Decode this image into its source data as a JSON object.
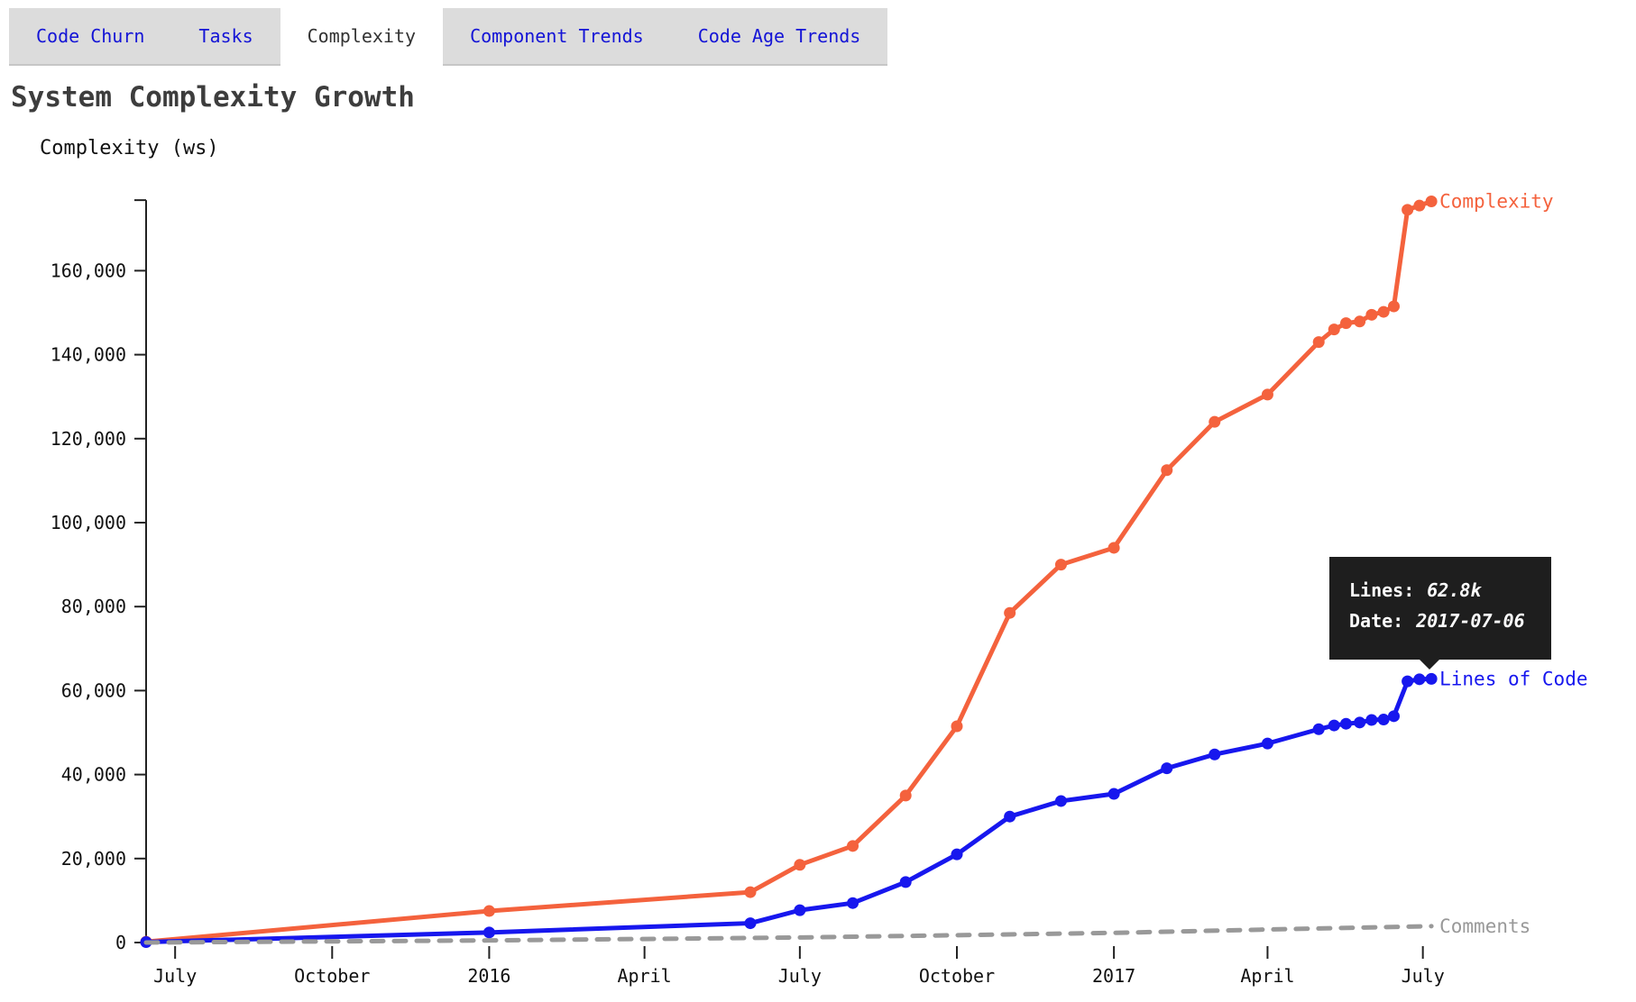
{
  "tabs": {
    "items": [
      {
        "label": "Code Churn",
        "active": false
      },
      {
        "label": "Tasks",
        "active": false
      },
      {
        "label": "Complexity",
        "active": true
      },
      {
        "label": "Component Trends",
        "active": false
      },
      {
        "label": "Code Age Trends",
        "active": false
      }
    ]
  },
  "header": {
    "title": "System Complexity Growth"
  },
  "tooltip": {
    "rows": [
      {
        "label": "Lines:",
        "value": "62.8k"
      },
      {
        "label": "Date:",
        "value": "2017-07-06"
      }
    ]
  },
  "chart_data": {
    "type": "line",
    "title": "System Complexity Growth",
    "legend_position": "line-end-labels",
    "grid": false,
    "y_axis": {
      "label": "Complexity (ws)",
      "ticks": [
        0,
        20000,
        40000,
        60000,
        80000,
        100000,
        120000,
        140000,
        160000
      ],
      "tick_labels": [
        "0",
        "20,000",
        "40,000",
        "60,000",
        "80,000",
        "100,000",
        "120,000",
        "140,000",
        "160,000"
      ],
      "max": 176800
    },
    "x_axis": {
      "domain": [
        "2015-06-14",
        "2017-07-20"
      ],
      "ticks": [
        {
          "date": "2015-07-01",
          "label": "July"
        },
        {
          "date": "2015-10-01",
          "label": "October"
        },
        {
          "date": "2016-01-01",
          "label": "2016"
        },
        {
          "date": "2016-04-01",
          "label": "April"
        },
        {
          "date": "2016-07-01",
          "label": "July"
        },
        {
          "date": "2016-10-01",
          "label": "October"
        },
        {
          "date": "2017-01-01",
          "label": "2017"
        },
        {
          "date": "2017-04-01",
          "label": "April"
        },
        {
          "date": "2017-07-01",
          "label": "July"
        }
      ]
    },
    "series": [
      {
        "name": "Complexity",
        "color": "#f4623d",
        "style": "solid",
        "markers": true,
        "points": [
          {
            "date": "2015-06-14",
            "value": 200
          },
          {
            "date": "2016-01-01",
            "value": 7500
          },
          {
            "date": "2016-06-02",
            "value": 12000
          },
          {
            "date": "2016-07-01",
            "value": 18500
          },
          {
            "date": "2016-08-01",
            "value": 23000
          },
          {
            "date": "2016-09-01",
            "value": 35000
          },
          {
            "date": "2016-10-01",
            "value": 51500
          },
          {
            "date": "2016-11-01",
            "value": 78500
          },
          {
            "date": "2016-12-01",
            "value": 90000
          },
          {
            "date": "2017-01-01",
            "value": 94000
          },
          {
            "date": "2017-02-01",
            "value": 112500
          },
          {
            "date": "2017-03-01",
            "value": 124000
          },
          {
            "date": "2017-04-01",
            "value": 130500
          },
          {
            "date": "2017-05-01",
            "value": 143000
          },
          {
            "date": "2017-05-10",
            "value": 146000
          },
          {
            "date": "2017-05-17",
            "value": 147500
          },
          {
            "date": "2017-05-25",
            "value": 147900
          },
          {
            "date": "2017-06-01",
            "value": 149500
          },
          {
            "date": "2017-06-08",
            "value": 150200
          },
          {
            "date": "2017-06-14",
            "value": 151500
          },
          {
            "date": "2017-06-22",
            "value": 174500
          },
          {
            "date": "2017-06-29",
            "value": 175500
          },
          {
            "date": "2017-07-06",
            "value": 176500
          }
        ]
      },
      {
        "name": "Lines of Code",
        "color": "#1717ee",
        "style": "solid",
        "markers": true,
        "points": [
          {
            "date": "2015-06-14",
            "value": 100
          },
          {
            "date": "2016-01-01",
            "value": 2400
          },
          {
            "date": "2016-06-02",
            "value": 4600
          },
          {
            "date": "2016-07-01",
            "value": 7700
          },
          {
            "date": "2016-08-01",
            "value": 9400
          },
          {
            "date": "2016-09-01",
            "value": 14400
          },
          {
            "date": "2016-10-01",
            "value": 21000
          },
          {
            "date": "2016-11-01",
            "value": 30000
          },
          {
            "date": "2016-12-01",
            "value": 33700
          },
          {
            "date": "2017-01-01",
            "value": 35400
          },
          {
            "date": "2017-02-01",
            "value": 41500
          },
          {
            "date": "2017-03-01",
            "value": 44800
          },
          {
            "date": "2017-04-01",
            "value": 47400
          },
          {
            "date": "2017-05-01",
            "value": 50800
          },
          {
            "date": "2017-05-10",
            "value": 51700
          },
          {
            "date": "2017-05-17",
            "value": 52100
          },
          {
            "date": "2017-05-25",
            "value": 52400
          },
          {
            "date": "2017-06-01",
            "value": 53000
          },
          {
            "date": "2017-06-08",
            "value": 53100
          },
          {
            "date": "2017-06-14",
            "value": 53900
          },
          {
            "date": "2017-06-22",
            "value": 62200
          },
          {
            "date": "2017-06-29",
            "value": 62700
          },
          {
            "date": "2017-07-06",
            "value": 62800
          }
        ]
      },
      {
        "name": "Comments",
        "color": "#999999",
        "style": "dashed",
        "markers": false,
        "points": [
          {
            "date": "2015-06-14",
            "value": 0
          },
          {
            "date": "2016-01-01",
            "value": 500
          },
          {
            "date": "2016-07-01",
            "value": 1200
          },
          {
            "date": "2017-01-01",
            "value": 2300
          },
          {
            "date": "2017-04-01",
            "value": 3100
          },
          {
            "date": "2017-07-06",
            "value": 3900
          }
        ]
      }
    ]
  }
}
